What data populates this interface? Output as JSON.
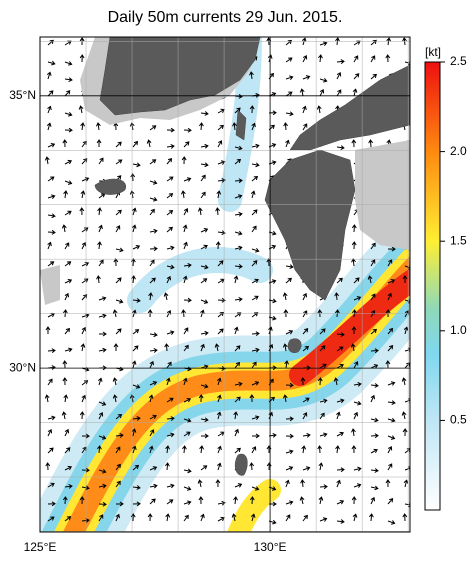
{
  "title": "Daily 50m currents 29 Jun. 2015.",
  "map": {
    "lon_lim": [
      125,
      133.04
    ],
    "lat_lim": [
      26.99,
      36.08
    ],
    "lon_ticks": [
      {
        "value": 125,
        "label": "125°E"
      },
      {
        "value": 130,
        "label": "130°E"
      }
    ],
    "lat_ticks": [
      {
        "value": 30,
        "label": "30°N"
      },
      {
        "value": 35,
        "label": "35°N"
      }
    ]
  },
  "colorbar": {
    "unit": "[kt]",
    "lim": [
      0,
      2.5
    ],
    "ticks": [
      0.5,
      {
        "value": 1.0,
        "label": "1.0"
      },
      1.5,
      {
        "value": 2.0,
        "label": "2.0"
      },
      2.5
    ]
  }
}
